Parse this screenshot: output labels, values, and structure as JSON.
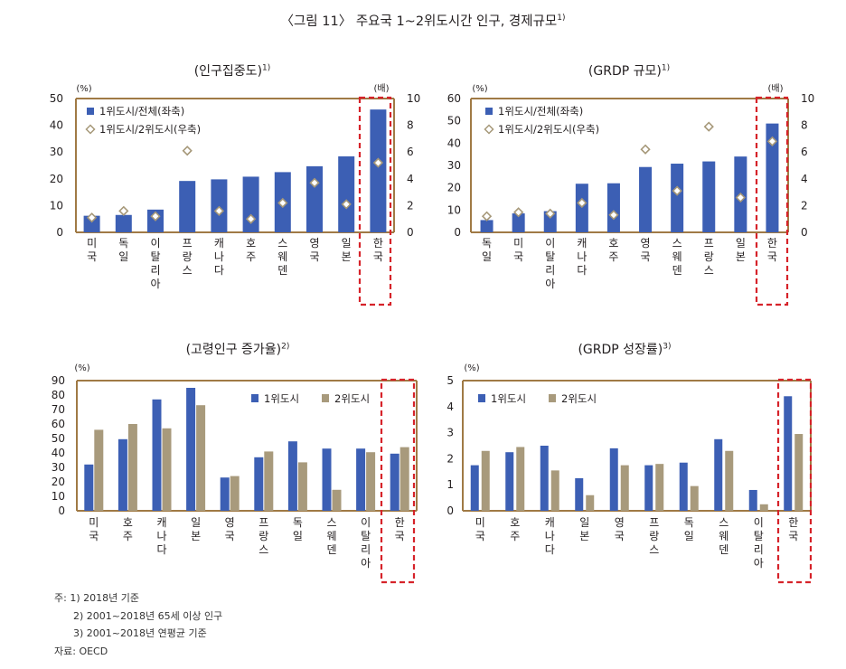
{
  "figure_title": "〈그림 11〉 주요국 1~2위도시간 인구, 경제규모",
  "figure_title_sup": "1)",
  "colors": {
    "axis": "#a07a45",
    "bar_primary": "#3c5fb4",
    "bar_secondary": "#a89a7c",
    "diamond_fill": "#ffffff",
    "diamond_stroke": "#a69879",
    "highlight": "#d6232a"
  },
  "chart_data": [
    {
      "id": "population",
      "type": "bar",
      "title": "(인구집중도)",
      "title_sup": "1)",
      "left_unit": "(%)",
      "right_unit": "(배)",
      "categories": [
        "미국",
        "독일",
        "이탈리아",
        "프랑스",
        "캐나다",
        "호주",
        "스웨덴",
        "영국",
        "일본",
        "한국"
      ],
      "y_left": {
        "min": 0,
        "max": 50,
        "ticks": [
          "0",
          "10",
          "20",
          "30",
          "40",
          "50"
        ]
      },
      "y_right": {
        "min": 0,
        "max": 10,
        "ticks": [
          "0",
          "2",
          "4",
          "6",
          "8",
          "10"
        ]
      },
      "legend": [
        "1위도시/전체(좌축)",
        "1위도시/2위도시(우축)"
      ],
      "series": [
        {
          "name": "1위도시/전체(좌축)",
          "axis": "left",
          "kind": "bar",
          "values": [
            6.2,
            6.5,
            8.5,
            19.2,
            19.8,
            20.8,
            22.5,
            24.7,
            28.4,
            45.9
          ]
        },
        {
          "name": "1위도시/2위도시(우축)",
          "axis": "right",
          "kind": "diamond",
          "values": [
            1.1,
            1.6,
            1.2,
            6.1,
            1.6,
            1.0,
            2.2,
            3.7,
            2.1,
            5.2
          ]
        }
      ],
      "highlight": "한국"
    },
    {
      "id": "grdp_size",
      "type": "bar",
      "title": "(GRDP 규모)",
      "title_sup": "1)",
      "left_unit": "(%)",
      "right_unit": "(배)",
      "categories": [
        "독일",
        "미국",
        "이탈리아",
        "캐나다",
        "호주",
        "영국",
        "스웨덴",
        "프랑스",
        "일본",
        "한국"
      ],
      "y_left": {
        "min": 0,
        "max": 60,
        "ticks": [
          "0",
          "10",
          "20",
          "30",
          "40",
          "50",
          "60"
        ]
      },
      "y_right": {
        "min": 0,
        "max": 10,
        "ticks": [
          "0",
          "2",
          "4",
          "6",
          "8",
          "10"
        ]
      },
      "legend": [
        "1위도시/전체(좌축)",
        "1위도시/2위도시(우축)"
      ],
      "series": [
        {
          "name": "1위도시/전체(좌축)",
          "axis": "left",
          "kind": "bar",
          "values": [
            5.5,
            8.5,
            9.5,
            21.8,
            22.0,
            29.3,
            30.8,
            31.8,
            34.0,
            48.8
          ]
        },
        {
          "name": "1위도시/2위도시(우축)",
          "axis": "right",
          "kind": "diamond",
          "values": [
            1.2,
            1.5,
            1.4,
            2.2,
            1.3,
            6.2,
            3.1,
            7.9,
            2.6,
            6.8
          ]
        }
      ],
      "highlight": "한국"
    },
    {
      "id": "aging",
      "type": "bar",
      "title": "(고령인구 증가율)",
      "title_sup": "2)",
      "left_unit": "(%)",
      "categories": [
        "미국",
        "호주",
        "캐나다",
        "일본",
        "영국",
        "프랑스",
        "독일",
        "스웨덴",
        "이탈리아",
        "한국"
      ],
      "y_left": {
        "min": 0,
        "max": 90,
        "ticks": [
          "0",
          "10",
          "20",
          "30",
          "40",
          "50",
          "60",
          "70",
          "80",
          "90"
        ]
      },
      "legend": [
        "1위도시",
        "2위도시"
      ],
      "series": [
        {
          "name": "1위도시",
          "kind": "bar",
          "values": [
            32,
            49.5,
            77,
            85,
            23,
            37,
            48,
            43,
            43,
            39.5
          ]
        },
        {
          "name": "2위도시",
          "kind": "bar",
          "values": [
            56,
            60,
            57,
            73,
            24,
            41,
            33.5,
            14.5,
            40.5,
            44
          ]
        }
      ],
      "highlight": "한국"
    },
    {
      "id": "grdp_growth",
      "type": "bar",
      "title": "(GRDP 성장률)",
      "title_sup": "3)",
      "left_unit": "(%)",
      "categories": [
        "미국",
        "호주",
        "캐나다",
        "일본",
        "영국",
        "프랑스",
        "독일",
        "스웨덴",
        "이탈리아",
        "한국"
      ],
      "y_left": {
        "min": 0,
        "max": 5,
        "ticks": [
          "0",
          "1",
          "2",
          "3",
          "4",
          "5"
        ]
      },
      "legend": [
        "1위도시",
        "2위도시"
      ],
      "series": [
        {
          "name": "1위도시",
          "kind": "bar",
          "values": [
            1.75,
            2.25,
            2.5,
            1.25,
            2.4,
            1.75,
            1.85,
            2.75,
            0.8,
            4.4
          ]
        },
        {
          "name": "2위도시",
          "kind": "bar",
          "values": [
            2.3,
            2.45,
            1.55,
            0.6,
            1.75,
            1.8,
            0.95,
            2.3,
            0.25,
            2.95
          ]
        }
      ],
      "highlight": "한국"
    }
  ],
  "notes": [
    "주: 1) 2018년 기준",
    "      2) 2001~2018년 65세 이상 인구",
    "      3) 2001~2018년 연평균 기준",
    "자료: OECD"
  ]
}
